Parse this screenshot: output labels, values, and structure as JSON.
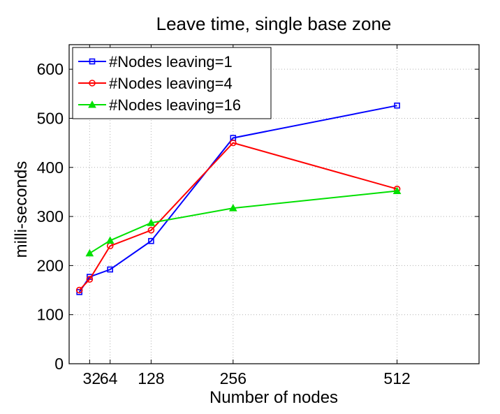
{
  "chart_data": {
    "type": "line",
    "title": "Leave time, single base zone",
    "xlabel": "Number of nodes",
    "ylabel": "milli-seconds",
    "xlim": [
      0,
      640
    ],
    "ylim": [
      0,
      650
    ],
    "x_ticks": [
      32,
      64,
      128,
      256,
      512
    ],
    "x_tick_labels": [
      "32",
      "64",
      "128",
      "256",
      "512"
    ],
    "y_ticks": [
      0,
      100,
      200,
      300,
      400,
      500,
      600
    ],
    "grid": true,
    "legend_position": "top-left",
    "series": [
      {
        "name": "#Nodes leaving=1",
        "color": "#0000ff",
        "marker": "square",
        "x": [
          16,
          32,
          64,
          128,
          256,
          512
        ],
        "y": [
          146,
          177,
          192,
          250,
          460,
          526
        ]
      },
      {
        "name": "#Nodes leaving=4",
        "color": "#ff0000",
        "marker": "circle",
        "x": [
          16,
          32,
          64,
          128,
          256,
          512
        ],
        "y": [
          150,
          172,
          240,
          272,
          450,
          356
        ]
      },
      {
        "name": "#Nodes leaving=16",
        "color": "#00e000",
        "marker": "triangle",
        "x": [
          32,
          64,
          128,
          256,
          512
        ],
        "y": [
          225,
          251,
          287,
          317,
          352
        ]
      }
    ]
  }
}
